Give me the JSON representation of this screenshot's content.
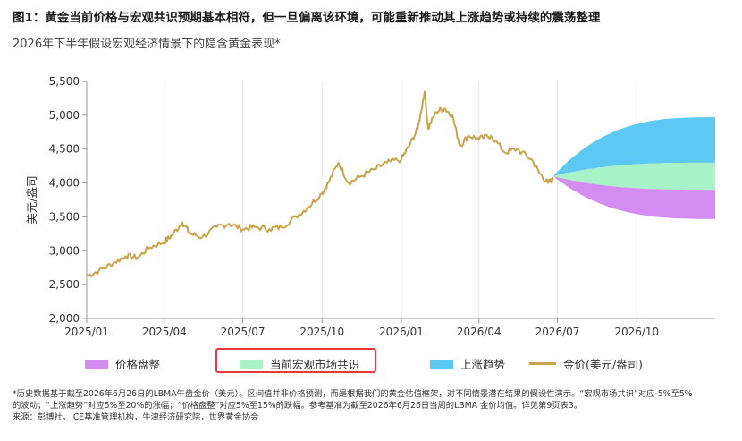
{
  "title": "图1：黄金当前价格与宏观共识预期基本相符，但一旦偏离该环境，可能重新推动其上涨趋势或持续的震荡整理",
  "subtitle": "2026年下半年假设宏观经济情景下的隐含黄金表现*",
  "legend": {
    "range": "价格盘整",
    "consensus": "当前宏观市场共识",
    "uptrend": "上涨趋势",
    "gold": "金价(美元/盎司)"
  },
  "footnote": {
    "line1": "*历史数据基于截至2026年6月26日的LBMA午盘金价（美元）。区间值并非价格预测，而是根据我们的黄金估值框架，对不同情景潜在结果的假设性演示。“宏观市场共识”对应-5%至5%",
    "line2": "的波动；“上涨趋势”对应5%至20%的涨幅；“价格盘整”对应5%至15%的跌幅。参考基准为截至2026年6月26日当周的LBMA 金价均值。详见第9页表3。",
    "line3": "来源：彭博社，ICE基准管理机构，牛津经济研究院，世界黄金协会"
  },
  "colors": {
    "gold": "#C9A44C",
    "range": "#D48CF2",
    "consensus": "#A8F2C8",
    "uptrend": "#5EC8F4",
    "highlight": "#E23B3B",
    "grid": "#E6E6E6"
  },
  "chart_data": {
    "type": "line",
    "ylabel": "美元/盎司",
    "ylim": [
      2000,
      5500
    ],
    "yticks": [
      2000,
      2500,
      3000,
      3500,
      4000,
      4500,
      5000,
      5500
    ],
    "ytick_labels": [
      "2,000",
      "2,500",
      "3,000",
      "3,500",
      "4,000",
      "4,500",
      "5,000",
      "5,500"
    ],
    "xticks": [
      "2025/01",
      "2025/04",
      "2025/07",
      "2025/10",
      "2026/01",
      "2026/04",
      "2026/07",
      "2026/10"
    ],
    "xrange": [
      "2025/01",
      "2026/12"
    ],
    "grid": "vertical",
    "series": [
      {
        "name": "金价(美元/盎司)",
        "x": [
          "2025-01-01",
          "2025-01-15",
          "2025-02-01",
          "2025-02-15",
          "2025-03-01",
          "2025-03-15",
          "2025-04-01",
          "2025-04-10",
          "2025-04-22",
          "2025-05-01",
          "2025-05-15",
          "2025-06-01",
          "2025-06-15",
          "2025-07-01",
          "2025-07-15",
          "2025-08-01",
          "2025-08-15",
          "2025-09-01",
          "2025-09-15",
          "2025-10-01",
          "2025-10-08",
          "2025-10-20",
          "2025-11-01",
          "2025-11-15",
          "2025-12-01",
          "2025-12-15",
          "2026-01-01",
          "2026-01-10",
          "2026-01-20",
          "2026-01-28",
          "2026-02-01",
          "2026-02-10",
          "2026-02-20",
          "2026-03-01",
          "2026-03-10",
          "2026-03-20",
          "2026-04-01",
          "2026-04-15",
          "2026-05-01",
          "2026-05-15",
          "2026-06-01",
          "2026-06-10",
          "2026-06-20",
          "2026-06-26"
        ],
        "y": [
          2630,
          2700,
          2820,
          2920,
          2900,
          3050,
          3130,
          3230,
          3420,
          3250,
          3200,
          3350,
          3400,
          3320,
          3350,
          3320,
          3350,
          3500,
          3650,
          3850,
          4000,
          4300,
          4000,
          4100,
          4200,
          4300,
          4350,
          4550,
          4800,
          5350,
          4800,
          5050,
          5100,
          5000,
          4550,
          4700,
          4650,
          4700,
          4450,
          4500,
          4350,
          4150,
          4000,
          4050
        ]
      }
    ],
    "scenarios": {
      "start": {
        "x": "2026-06-26",
        "y": 4100
      },
      "end_x": "2026-12-31",
      "uptrend": [
        4300,
        4970
      ],
      "consensus": [
        3900,
        4300
      ],
      "range": [
        3470,
        3900
      ]
    }
  }
}
